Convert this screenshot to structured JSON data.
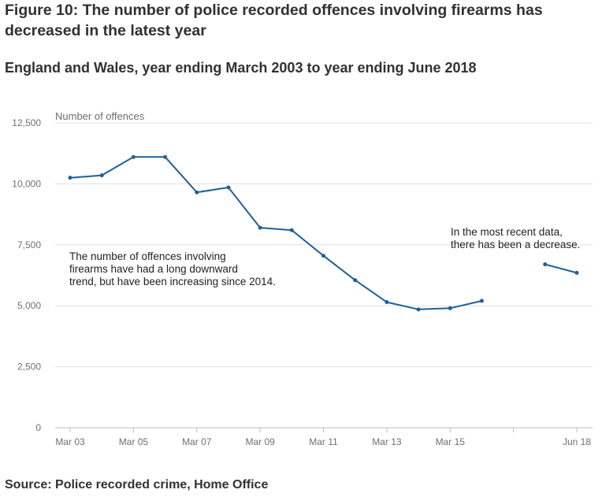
{
  "header": {
    "title": "Figure 10: The number of police recorded offences involving firearms has decreased in the latest year",
    "subtitle": "England and Wales, year ending March 2003 to year ending June 2018"
  },
  "footer": {
    "source": "Source: Police recorded crime, Home Office"
  },
  "colors": {
    "line": "#206095",
    "grid": "#e0e0e0",
    "axis_text": "#707071"
  },
  "chart_data": {
    "type": "line",
    "title": "Figure 10: The number of police recorded offences involving firearms has decreased in the latest year",
    "subtitle": "England and Wales, year ending March 2003 to year ending June 2018",
    "ylabel": "Number of offences",
    "xlabel": "",
    "ylim": [
      0,
      12500
    ],
    "yticks": [
      0,
      2500,
      5000,
      7500,
      10000,
      12500
    ],
    "ytick_labels": [
      "0",
      "2,500",
      "5,000",
      "7,500",
      "10,000",
      "12,500"
    ],
    "xlim": [
      0,
      16
    ],
    "xticks": [
      0,
      2,
      4,
      6,
      8,
      10,
      12,
      14,
      16
    ],
    "xtick_labels": [
      "Mar 03",
      "Mar 05",
      "Mar 07",
      "Mar 09",
      "Mar 11",
      "Mar 13",
      "Mar 15",
      "",
      "Jun 18"
    ],
    "grid": true,
    "legend": "none",
    "series": [
      {
        "segments": [
          {
            "x": [
              "Mar 03",
              "Mar 04",
              "Mar 05",
              "Mar 06",
              "Mar 07",
              "Mar 08",
              "Mar 09",
              "Mar 10",
              "Mar 11",
              "Mar 12",
              "Mar 13",
              "Mar 14",
              "Mar 15",
              "Mar 16"
            ],
            "xpos": [
              0,
              1,
              2,
              3,
              4,
              5,
              6,
              7,
              8,
              9,
              10,
              11,
              12,
              13
            ],
            "values": [
              10250,
              10350,
              11100,
              11100,
              9650,
              9850,
              8200,
              8100,
              7050,
              6050,
              5150,
              4850,
              4900,
              5200
            ]
          },
          {
            "x": [
              "Mar 17",
              "Jun 18"
            ],
            "xpos": [
              15,
              16
            ],
            "values": [
              6700,
              6350
            ]
          }
        ]
      }
    ],
    "annotations": [
      {
        "lines": [
          "The number of offences involving",
          "firearms have had a long downward",
          "trend, but have been increasing since 2014."
        ]
      },
      {
        "lines": [
          "In the most recent data,",
          "there has been a decrease."
        ]
      }
    ]
  }
}
